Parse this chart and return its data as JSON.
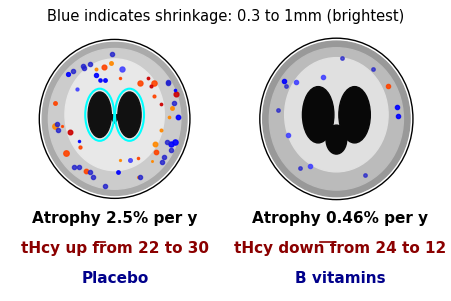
{
  "title": "Blue indicates shrinkage: 0.3 to 1mm (brightest)",
  "title_fontsize": 10.5,
  "title_color": "#000000",
  "bg_color": "#ffffff",
  "left_label_line1": "Atrophy 2.5% per y",
  "left_label_line2": "tHcy up from 22 to 30",
  "left_label_line3": "Placebo",
  "right_label_line1": "Atrophy 0.46% per y",
  "right_label_line2": "tHcy down from 24 to 12",
  "right_label_line3": "B vitamins",
  "black_color": "#000000",
  "red_color": "#8B0000",
  "blue_color": "#00008B",
  "label_fontsize": 11,
  "border_color": "#000000",
  "image_bg": "#111111"
}
